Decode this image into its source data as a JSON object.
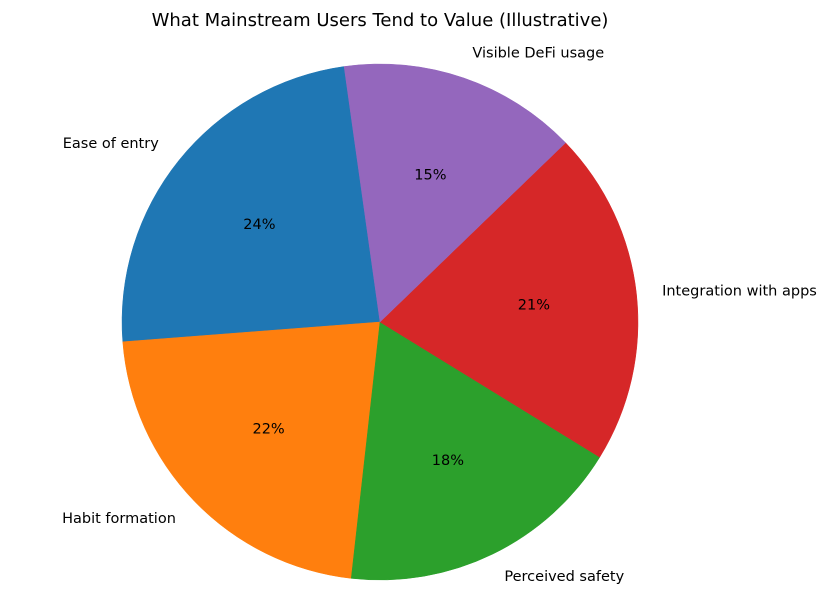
{
  "chart_data": {
    "type": "pie",
    "title": "What Mainstream Users Tend to Value (Illustrative)",
    "start_angle_deg": 98,
    "direction": "counterclockwise",
    "slices": [
      {
        "label": "Ease of entry",
        "value": 24,
        "pct_label": "24%",
        "color": "#1f77b4"
      },
      {
        "label": "Habit formation",
        "value": 22,
        "pct_label": "22%",
        "color": "#ff7f0e"
      },
      {
        "label": "Perceived safety",
        "value": 18,
        "pct_label": "18%",
        "color": "#2ca02c"
      },
      {
        "label": "Integration with apps",
        "value": 21,
        "pct_label": "21%",
        "color": "#d62728"
      },
      {
        "label": "Visible DeFi usage",
        "value": 15,
        "pct_label": "15%",
        "color": "#9467bd"
      }
    ]
  }
}
